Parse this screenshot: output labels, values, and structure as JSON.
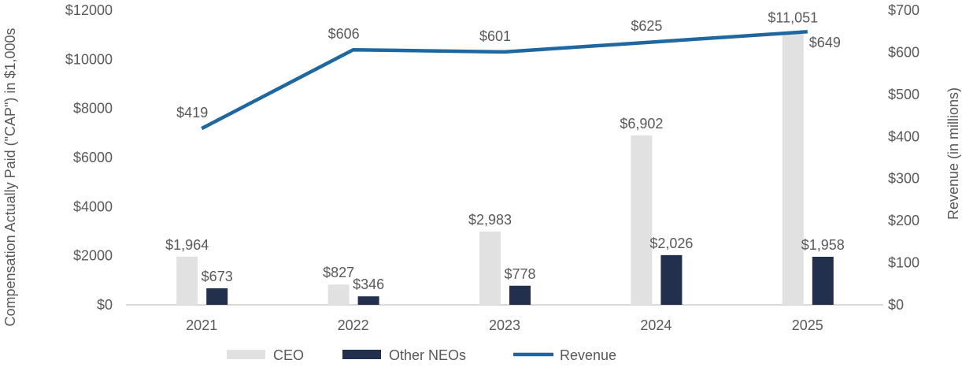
{
  "chart_data": {
    "type": "bar",
    "categories": [
      "2021",
      "2022",
      "2023",
      "2024",
      "2025"
    ],
    "series": [
      {
        "name": "CEO",
        "axis": "left",
        "type": "bar",
        "color": "#e0e1e0",
        "values": [
          1964,
          827,
          2983,
          6902,
          11051
        ],
        "labels": [
          "$1,964",
          "$827",
          "$2,983",
          "$6,902",
          "$11,051"
        ]
      },
      {
        "name": "Other NEOs",
        "axis": "left",
        "type": "bar",
        "color": "#22304d",
        "values": [
          673,
          346,
          778,
          2026,
          1958
        ],
        "labels": [
          "$673",
          "$346",
          "$778",
          "$2,026",
          "$1,958"
        ]
      },
      {
        "name": "Revenue",
        "axis": "right",
        "type": "line",
        "color": "#1f67a0",
        "values": [
          419,
          606,
          601,
          625,
          649
        ],
        "labels": [
          "$419",
          "$606",
          "$601",
          "$625",
          "$649"
        ]
      }
    ],
    "ylabel": "Compensation Actually Paid (\"CAP\") in $1,000s",
    "y2label": "Revenue (in millions)",
    "ylim": [
      0,
      12000
    ],
    "y2lim": [
      0,
      700
    ],
    "yticks": [
      "$0",
      "$2000",
      "$4000",
      "$6000",
      "$8000",
      "$10000",
      "$12000"
    ],
    "y2ticks": [
      "$0",
      "$100",
      "$200",
      "$300",
      "$400",
      "$500",
      "$600",
      "$700"
    ],
    "grid": false,
    "legend": "bottom"
  }
}
